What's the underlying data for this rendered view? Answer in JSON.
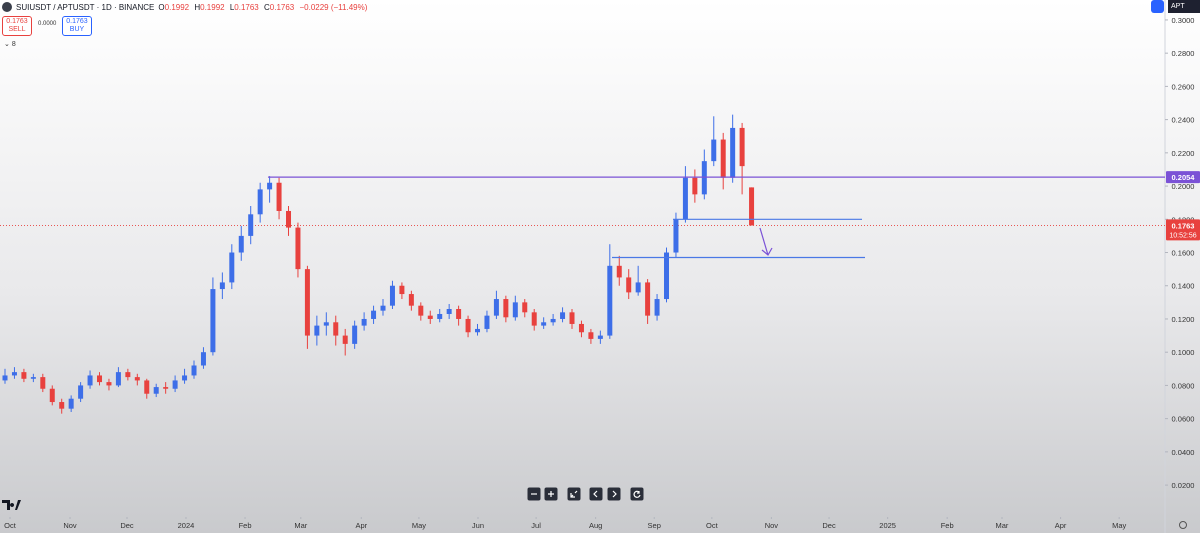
{
  "header": {
    "symbol": "SUIUSDT / APTUSDT · 1D · BINANCE",
    "o_label": "O",
    "o_value": "0.1992",
    "h_label": "H",
    "h_value": "0.1992",
    "l_label": "L",
    "l_value": "0.1763",
    "c_label": "C",
    "c_value": "0.1763",
    "change": "−0.0229 (−11.49%)",
    "sell_price": "0.1763",
    "sell_label": "SELL",
    "spread": "0.0000",
    "buy_price": "0.1763",
    "buy_label": "BUY",
    "indicators": "8",
    "compare_symbol": "APT"
  },
  "chart_data": {
    "type": "candlestick",
    "categories": [
      null,
      null,
      null,
      null,
      null,
      null,
      null,
      null,
      null,
      null,
      null,
      null,
      null,
      null,
      null,
      null,
      null,
      null,
      null,
      null,
      null,
      null,
      null,
      null,
      null,
      null,
      null,
      null,
      null,
      null,
      null,
      null,
      null,
      null,
      null,
      null,
      null,
      null,
      null,
      null,
      null,
      null,
      null,
      null,
      null,
      null,
      null,
      null,
      null,
      null,
      null,
      null,
      null,
      null,
      null,
      null,
      null,
      null,
      null,
      null,
      null,
      null,
      null,
      null,
      null,
      null,
      null,
      null,
      null,
      null,
      null,
      null,
      null,
      null,
      null,
      null,
      null,
      null,
      null,
      null
    ],
    "open": [
      0.083,
      0.086,
      0.088,
      0.084,
      0.085,
      0.078,
      0.07,
      0.066,
      0.072,
      0.08,
      0.086,
      0.082,
      0.08,
      0.088,
      0.085,
      0.083,
      0.075,
      0.079,
      0.078,
      0.083,
      0.086,
      0.092,
      0.1,
      0.138,
      0.142,
      0.16,
      0.17,
      0.183,
      0.198,
      0.202,
      0.185,
      0.175,
      0.15,
      0.11,
      0.116,
      0.118,
      0.11,
      0.105,
      0.116,
      0.12,
      0.125,
      0.128,
      0.14,
      0.135,
      0.128,
      0.122,
      0.12,
      0.123,
      0.126,
      0.12,
      0.112,
      0.114,
      0.122,
      0.132,
      0.121,
      0.13,
      0.124,
      0.116,
      0.118,
      0.12,
      0.124,
      0.117,
      0.112,
      0.108,
      0.11,
      0.152,
      0.145,
      0.136,
      0.142,
      0.122,
      0.132,
      0.16,
      0.18,
      0.205,
      0.195,
      0.215,
      0.228,
      0.205,
      0.235,
      0.1992
    ],
    "high": [
      0.09,
      0.091,
      0.09,
      0.087,
      0.087,
      0.08,
      0.072,
      0.074,
      0.082,
      0.089,
      0.088,
      0.084,
      0.091,
      0.09,
      0.087,
      0.084,
      0.081,
      0.082,
      0.086,
      0.09,
      0.095,
      0.103,
      0.145,
      0.148,
      0.165,
      0.176,
      0.188,
      0.202,
      0.206,
      0.205,
      0.188,
      0.178,
      0.152,
      0.122,
      0.124,
      0.122,
      0.114,
      0.119,
      0.124,
      0.128,
      0.132,
      0.143,
      0.142,
      0.137,
      0.13,
      0.125,
      0.126,
      0.129,
      0.128,
      0.122,
      0.117,
      0.125,
      0.137,
      0.134,
      0.134,
      0.132,
      0.126,
      0.121,
      0.123,
      0.127,
      0.126,
      0.119,
      0.114,
      0.113,
      0.165,
      0.158,
      0.15,
      0.152,
      0.144,
      0.135,
      0.163,
      0.184,
      0.212,
      0.21,
      0.222,
      0.242,
      0.232,
      0.243,
      0.238,
      0.1992
    ],
    "low": [
      0.081,
      0.084,
      0.082,
      0.082,
      0.076,
      0.068,
      0.063,
      0.064,
      0.07,
      0.078,
      0.08,
      0.077,
      0.079,
      0.083,
      0.08,
      0.072,
      0.073,
      0.075,
      0.076,
      0.081,
      0.084,
      0.09,
      0.098,
      0.132,
      0.138,
      0.155,
      0.165,
      0.178,
      0.19,
      0.18,
      0.17,
      0.145,
      0.102,
      0.104,
      0.11,
      0.104,
      0.098,
      0.102,
      0.113,
      0.117,
      0.122,
      0.126,
      0.132,
      0.125,
      0.119,
      0.117,
      0.118,
      0.12,
      0.116,
      0.109,
      0.11,
      0.112,
      0.12,
      0.118,
      0.119,
      0.121,
      0.113,
      0.114,
      0.116,
      0.118,
      0.114,
      0.109,
      0.105,
      0.105,
      0.108,
      0.14,
      0.132,
      0.134,
      0.117,
      0.119,
      0.13,
      0.157,
      0.178,
      0.19,
      0.192,
      0.212,
      0.198,
      0.202,
      0.195,
      0.1763
    ],
    "close": [
      0.086,
      0.088,
      0.084,
      0.085,
      0.078,
      0.07,
      0.066,
      0.072,
      0.08,
      0.086,
      0.082,
      0.08,
      0.088,
      0.085,
      0.083,
      0.075,
      0.079,
      0.078,
      0.083,
      0.086,
      0.092,
      0.1,
      0.138,
      0.142,
      0.16,
      0.17,
      0.183,
      0.198,
      0.202,
      0.185,
      0.175,
      0.15,
      0.11,
      0.116,
      0.118,
      0.11,
      0.105,
      0.116,
      0.12,
      0.125,
      0.128,
      0.14,
      0.135,
      0.128,
      0.122,
      0.12,
      0.123,
      0.126,
      0.12,
      0.112,
      0.114,
      0.122,
      0.132,
      0.121,
      0.13,
      0.124,
      0.116,
      0.118,
      0.12,
      0.124,
      0.117,
      0.112,
      0.108,
      0.11,
      0.152,
      0.145,
      0.136,
      0.142,
      0.122,
      0.132,
      0.16,
      0.18,
      0.205,
      0.195,
      0.215,
      0.228,
      0.205,
      0.235,
      0.212,
      0.1763
    ],
    "up_color": "#3d6ee8",
    "down_color": "#e8413e",
    "xlim": [
      -0.53,
      122.75
    ],
    "xticks": [
      {
        "value": 0.53,
        "label": "Oct"
      },
      {
        "value": 6.88,
        "label": "Nov"
      },
      {
        "value": 12.91,
        "label": "Dec"
      },
      {
        "value": 19.15,
        "label": "2024"
      },
      {
        "value": 25.4,
        "label": "Feb"
      },
      {
        "value": 31.3,
        "label": "Mar"
      },
      {
        "value": 37.7,
        "label": "Apr"
      },
      {
        "value": 43.8,
        "label": "May"
      },
      {
        "value": 50.05,
        "label": "Jun"
      },
      {
        "value": 56.2,
        "label": "Jul"
      },
      {
        "value": 62.5,
        "label": "Aug"
      },
      {
        "value": 68.7,
        "label": "Sep"
      },
      {
        "value": 74.8,
        "label": "Oct"
      },
      {
        "value": 81.1,
        "label": "Nov"
      },
      {
        "value": 87.2,
        "label": "Dec"
      },
      {
        "value": 93.4,
        "label": "2025"
      },
      {
        "value": 99.7,
        "label": "Feb"
      },
      {
        "value": 105.5,
        "label": "Mar"
      },
      {
        "value": 111.7,
        "label": "Apr"
      },
      {
        "value": 117.9,
        "label": "May"
      }
    ],
    "ylim": [
      0.002,
      0.312
    ],
    "yticks": [
      {
        "value": 0.02,
        "label": "0.0200"
      },
      {
        "value": 0.04,
        "label": "0.0400"
      },
      {
        "value": 0.06,
        "label": "0.0600"
      },
      {
        "value": 0.08,
        "label": "0.0800"
      },
      {
        "value": 0.1,
        "label": "0.1000"
      },
      {
        "value": 0.12,
        "label": "0.1200"
      },
      {
        "value": 0.14,
        "label": "0.1400"
      },
      {
        "value": 0.16,
        "label": "0.1600"
      },
      {
        "value": 0.18,
        "label": "0.1800"
      },
      {
        "value": 0.2,
        "label": "0.2000"
      },
      {
        "value": 0.22,
        "label": "0.2200"
      },
      {
        "value": 0.24,
        "label": "0.2400"
      },
      {
        "value": 0.26,
        "label": "0.2600"
      },
      {
        "value": 0.28,
        "label": "0.2800"
      },
      {
        "value": 0.3,
        "label": "0.3000"
      }
    ],
    "resistance": {
      "value": 0.2054,
      "label": "0.2054",
      "color": "#7b52d6"
    },
    "supports": [
      0.18,
      0.157
    ],
    "support_color": "#4a78e6",
    "last_price": {
      "value": 0.1763,
      "label": "0.1763",
      "countdown": "10:52:56",
      "color": "#e8413e"
    }
  }
}
